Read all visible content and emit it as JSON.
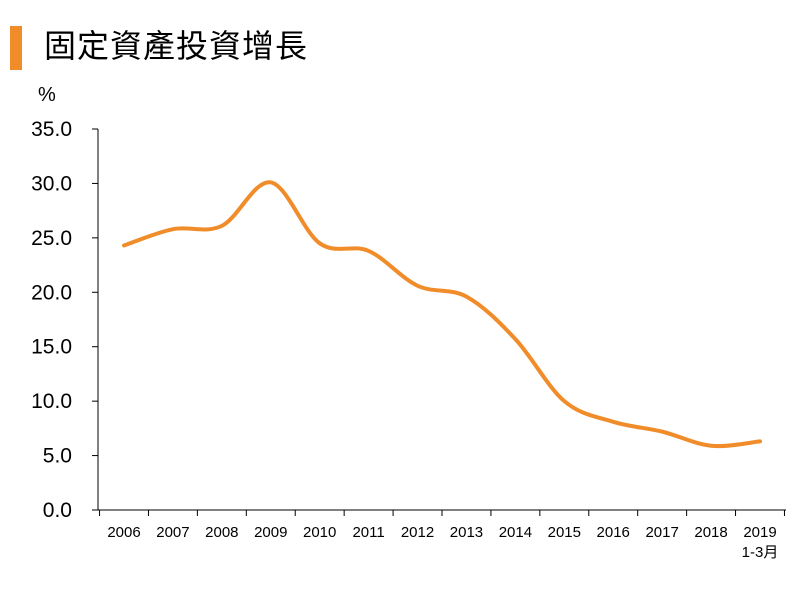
{
  "title": "固定資產投資增長",
  "accent_color": "#f08c2a",
  "chart_data": {
    "type": "line",
    "title": "固定資產投資增長",
    "ylabel": "%",
    "xlabel": "",
    "ylim": [
      0,
      35
    ],
    "yticks": [
      "0.0",
      "5.0",
      "10.0",
      "15.0",
      "20.0",
      "25.0",
      "30.0",
      "35.0"
    ],
    "categories": [
      "2006",
      "2007",
      "2008",
      "2009",
      "2010",
      "2011",
      "2012",
      "2013",
      "2014",
      "2015",
      "2016",
      "2017",
      "2018",
      "2019"
    ],
    "category_sublabels": [
      "",
      "",
      "",
      "",
      "",
      "",
      "",
      "",
      "",
      "",
      "",
      "",
      "",
      "1-3月"
    ],
    "series": [
      {
        "color": "#f08c2a",
        "values": [
          24.3,
          25.8,
          26.1,
          30.1,
          24.5,
          23.8,
          20.6,
          19.6,
          15.7,
          10.0,
          8.1,
          7.2,
          5.9,
          6.3
        ]
      }
    ],
    "grid": false,
    "legend": "none"
  }
}
